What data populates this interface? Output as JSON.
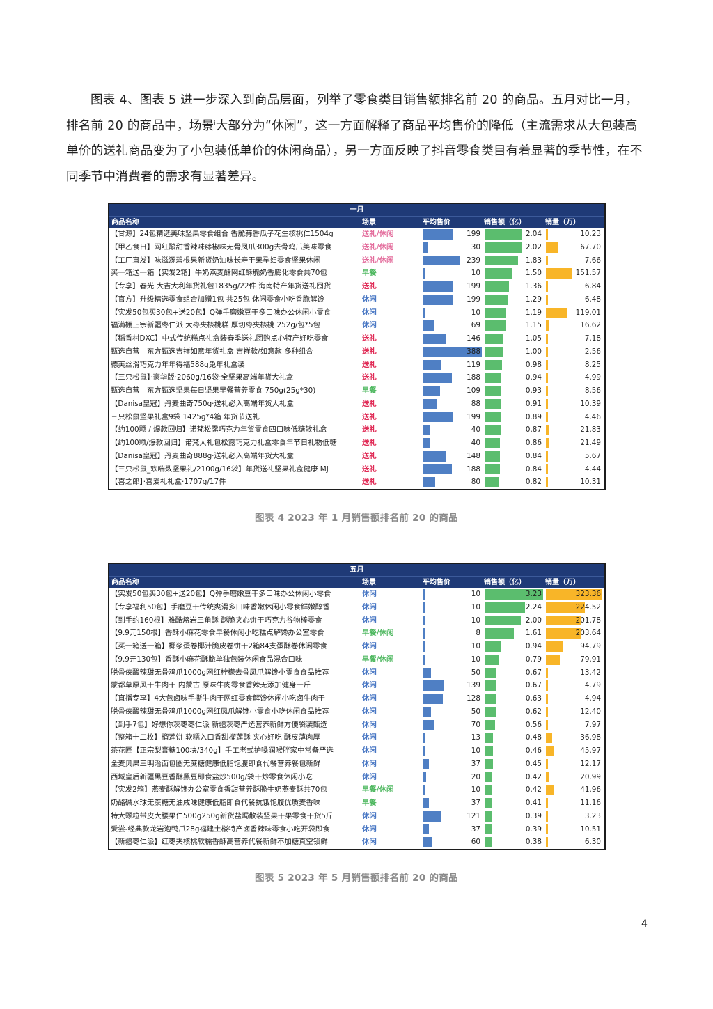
{
  "intro": {
    "text": "图表 4、图表 5 进一步深入到商品层面，列举了零食类目销售额排名前 20 的商品。五月对比一月，排名前 20 的商品中，场景",
    "footnote_mark": "i",
    "text2": "大部分为“休闲”，这一方面解释了商品平均售价的降低（主流需求从大包装高单价的送礼商品变为了小包装低单价的休闲商品），另一方面反映了抖音零食类目有着显著的季节性，在不同季节中消费者的需求有显著差异。"
  },
  "colors": {
    "header_bg": "#1f3a77",
    "price_bar": "#4f7fc4",
    "amount_bar": "#5bbd6e",
    "qty_bar": "#f8b528",
    "scene_gift": "#e02a55",
    "scene_gift_leisure": "#e36b9b",
    "scene_leisure": "#4a78c4",
    "scene_breakfast": "#4fb860"
  },
  "headers": {
    "name": "商品名称",
    "scene": "场景",
    "price": "平均售价",
    "amount": "销售额（亿）",
    "qty": "销量（万）"
  },
  "table1": {
    "title": "一月",
    "caption": "图表 4 2023 年 1 月销售额排名前 20 的商品",
    "rows": [
      {
        "name": "【甘源】24包精选美味坚果零食组合 香脆蒜香瓜子花生核桃仁1504g",
        "scene": "送礼/休闲",
        "price": "199",
        "amount": "2.04",
        "qty": "10.23",
        "price_v": 199,
        "amount_v": 2.04,
        "qty_v": 10.23
      },
      {
        "name": "【甲乙食日】网红酸甜香辣味藤椒味无骨凤爪300g去骨鸡爪美味零食",
        "scene": "送礼/休闲",
        "price": "30",
        "amount": "2.02",
        "qty": "67.70",
        "price_v": 30,
        "amount_v": 2.02,
        "qty_v": 67.7
      },
      {
        "name": "【工厂直发】味滋源碧根果新货奶油味长寿干果孕妇零食坚果休闲",
        "scene": "送礼/休闲",
        "price": "239",
        "amount": "1.83",
        "qty": "7.66",
        "price_v": 239,
        "amount_v": 1.83,
        "qty_v": 7.66
      },
      {
        "name": "买一箱送一箱【实发2箱】牛奶燕麦酥网红酥脆奶香膨化零食共70包",
        "scene": "早餐",
        "price": "10",
        "amount": "1.50",
        "qty": "151.57",
        "price_v": 10,
        "amount_v": 1.5,
        "qty_v": 151.57
      },
      {
        "name": "【专享】春光 大吉大利年货礼包1835g/22件 海南特产年货送礼囤货",
        "scene": "送礼",
        "price": "199",
        "amount": "1.36",
        "qty": "6.84",
        "price_v": 199,
        "amount_v": 1.36,
        "qty_v": 6.84
      },
      {
        "name": "【官方】升级精选零食组合加赠1包 共25包 休闲零食小吃香脆解馋",
        "scene": "休闲",
        "price": "199",
        "amount": "1.29",
        "qty": "6.48",
        "price_v": 199,
        "amount_v": 1.29,
        "qty_v": 6.48
      },
      {
        "name": "【实发50包买30包+送20包】Q弹手磨嫩豆干多口味办公休闲小零食",
        "scene": "休闲",
        "price": "10",
        "amount": "1.19",
        "qty": "119.01",
        "price_v": 10,
        "amount_v": 1.19,
        "qty_v": 119.01
      },
      {
        "name": "福满棚正宗新疆枣仁派 大枣夹核桃糕 厚切枣夹核桃 252g/包*5包",
        "scene": "休闲",
        "price": "69",
        "amount": "1.15",
        "qty": "16.62",
        "price_v": 69,
        "amount_v": 1.15,
        "qty_v": 16.62
      },
      {
        "name": "【稻香村DXC】中式传统糕点礼盒装春季送礼团购点心特产好吃零食",
        "scene": "送礼",
        "price": "146",
        "amount": "1.05",
        "qty": "7.18",
        "price_v": 146,
        "amount_v": 1.05,
        "qty_v": 7.18
      },
      {
        "name": "甄选自营｜东方甄选吉祥如意年货礼盒 吉祥款/如意款 多种组合",
        "scene": "送礼",
        "price": "388",
        "amount": "1.00",
        "qty": "2.56",
        "price_v": 388,
        "amount_v": 1.0,
        "qty_v": 2.56
      },
      {
        "name": "德芙丝滑巧克力年年得福588g兔年礼盒装",
        "scene": "送礼",
        "price": "119",
        "amount": "0.98",
        "qty": "8.25",
        "price_v": 119,
        "amount_v": 0.98,
        "qty_v": 8.25
      },
      {
        "name": "【三只松鼠】·豪华版·2060g/16袋·全坚果高端年货大礼盒",
        "scene": "送礼",
        "price": "188",
        "amount": "0.94",
        "qty": "4.99",
        "price_v": 188,
        "amount_v": 0.94,
        "qty_v": 4.99
      },
      {
        "name": "甄选自营｜东方甄选坚果每日坚果早餐营养零食 750g(25g*30)",
        "scene": "早餐",
        "price": "109",
        "amount": "0.93",
        "qty": "8.56",
        "price_v": 109,
        "amount_v": 0.93,
        "qty_v": 8.56
      },
      {
        "name": "【Danisa皇冠】丹麦曲奇750g·送礼必入高端年货大礼盒",
        "scene": "送礼",
        "price": "88",
        "amount": "0.91",
        "qty": "10.39",
        "price_v": 88,
        "amount_v": 0.91,
        "qty_v": 10.39
      },
      {
        "name": "三只松鼠坚果礼盒9袋 1425g*4箱 年货节送礼",
        "scene": "送礼",
        "price": "199",
        "amount": "0.89",
        "qty": "4.46",
        "price_v": 199,
        "amount_v": 0.89,
        "qty_v": 4.46
      },
      {
        "name": "【约100颗 / 爆款回归】诺梵松露巧克力年货零食四口味低糖散礼盒",
        "scene": "送礼",
        "price": "40",
        "amount": "0.87",
        "qty": "21.83",
        "price_v": 40,
        "amount_v": 0.87,
        "qty_v": 21.83
      },
      {
        "name": "【约100颗/爆款回归】诺梵大礼包松露巧克力礼盒零食年节日礼物低糖",
        "scene": "送礼",
        "price": "40",
        "amount": "0.86",
        "qty": "21.49",
        "price_v": 40,
        "amount_v": 0.86,
        "qty_v": 21.49
      },
      {
        "name": "【Danisa皇冠】丹麦曲奇888g·送礼必入高端年货大礼盒",
        "scene": "送礼",
        "price": "148",
        "amount": "0.84",
        "qty": "5.67",
        "price_v": 148,
        "amount_v": 0.84,
        "qty_v": 5.67
      },
      {
        "name": "【三只松鼠_欢喘数坚果礼/2100g/16袋】年货送礼坚果礼盒健康 MJ",
        "scene": "送礼",
        "price": "188",
        "amount": "0.84",
        "qty": "4.44",
        "price_v": 188,
        "amount_v": 0.84,
        "qty_v": 4.44
      },
      {
        "name": "【喜之郎】·喜爱礼礼盒·1707g/17件",
        "scene": "送礼",
        "price": "80",
        "amount": "0.82",
        "qty": "10.31",
        "price_v": 80,
        "amount_v": 0.82,
        "qty_v": 10.31
      }
    ]
  },
  "table2": {
    "title": "五月",
    "caption": "图表 5 2023 年 5 月销售额排名前 20 的商品",
    "rows": [
      {
        "name": "【实发50包买30包+送20包】Q弹手磨嫩豆干多口味办公休闲小零食",
        "scene": "休闲",
        "price": "10",
        "amount": "3.23",
        "qty": "323.36",
        "price_v": 10,
        "amount_v": 3.23,
        "qty_v": 323.36
      },
      {
        "name": "【专享福利50包】手磨豆干传统爽滑多口味香嫩休闲小零食鲜嫩醇香",
        "scene": "休闲",
        "price": "10",
        "amount": "2.24",
        "qty": "224.52",
        "price_v": 10,
        "amount_v": 2.24,
        "qty_v": 224.52
      },
      {
        "name": "【到手约160根】雅酷熔岩三角酥 酥脆夹心饼干巧克力谷物棒零食",
        "scene": "休闲",
        "price": "10",
        "amount": "2.00",
        "qty": "201.78",
        "price_v": 10,
        "amount_v": 2.0,
        "qty_v": 201.78
      },
      {
        "name": "【9.9元150根】香酥小麻花零食早餐休闲小吃糕点解馋办公室零食",
        "scene": "早餐/休闲",
        "price": "8",
        "amount": "1.61",
        "qty": "203.64",
        "price_v": 8,
        "amount_v": 1.61,
        "qty_v": 203.64
      },
      {
        "name": "【买一箱送一箱】椰浆蛋卷椰汁脆皮卷饼干2箱84支蛋酥卷休闲零食",
        "scene": "休闲",
        "price": "10",
        "amount": "0.94",
        "qty": "94.79",
        "price_v": 10,
        "amount_v": 0.94,
        "qty_v": 94.79
      },
      {
        "name": "【9.9元130包】香酥小麻花酥脆单独包装休闲食品混合口味",
        "scene": "早餐/休闲",
        "price": "10",
        "amount": "0.79",
        "qty": "79.91",
        "price_v": 10,
        "amount_v": 0.79,
        "qty_v": 79.91
      },
      {
        "name": "脱骨侠酸辣甜无骨鸡爪1000g网红柠檬去骨凤爪解馋小零食食品推荐",
        "scene": "休闲",
        "price": "50",
        "amount": "0.67",
        "qty": "13.42",
        "price_v": 50,
        "amount_v": 0.67,
        "qty_v": 13.42
      },
      {
        "name": "蒙都草原风干牛肉干 内蒙古 原味牛肉零食香辣无添加健身一斤",
        "scene": "休闲",
        "price": "139",
        "amount": "0.67",
        "qty": "4.79",
        "price_v": 139,
        "amount_v": 0.67,
        "qty_v": 4.79
      },
      {
        "name": "【直播专享】4大包卤味手撕牛肉干网红零食解馋休闲小吃卤牛肉干",
        "scene": "休闲",
        "price": "128",
        "amount": "0.63",
        "qty": "4.94",
        "price_v": 128,
        "amount_v": 0.63,
        "qty_v": 4.94
      },
      {
        "name": "脱骨侠酸辣甜无骨鸡爪1000g网红凤爪解馋小零食小吃休闲食品推荐",
        "scene": "休闲",
        "price": "50",
        "amount": "0.62",
        "qty": "12.40",
        "price_v": 50,
        "amount_v": 0.62,
        "qty_v": 12.4
      },
      {
        "name": "【到手7包】好想你灰枣枣仁派 新疆灰枣严选营养新鲜方便袋装甄选",
        "scene": "休闲",
        "price": "70",
        "amount": "0.56",
        "qty": "7.97",
        "price_v": 70,
        "amount_v": 0.56,
        "qty_v": 7.97
      },
      {
        "name": "【整箱十二枚】榴莲饼 软糯入口香甜榴莲酥 夹心好吃 酥皮薄肉厚",
        "scene": "休闲",
        "price": "13",
        "amount": "0.48",
        "qty": "36.98",
        "price_v": 13,
        "amount_v": 0.48,
        "qty_v": 36.98
      },
      {
        "name": "茶花匠【正宗梨膏糖100块/340g】手工老式护嗓润喉胖家中常备严选",
        "scene": "休闲",
        "price": "10",
        "amount": "0.46",
        "qty": "45.97",
        "price_v": 10,
        "amount_v": 0.46,
        "qty_v": 45.97
      },
      {
        "name": "全麦贝果三明治面包圈无蔗糖健康低脂饱腹即食代餐营养餐包新鲜",
        "scene": "休闲",
        "price": "37",
        "amount": "0.45",
        "qty": "12.17",
        "price_v": 37,
        "amount_v": 0.45,
        "qty_v": 12.17
      },
      {
        "name": "西域皇后新疆黑豆香酥黑豆即食盐炒500g/袋干炒零食休闲小吃",
        "scene": "休闲",
        "price": "20",
        "amount": "0.42",
        "qty": "20.99",
        "price_v": 20,
        "amount_v": 0.42,
        "qty_v": 20.99
      },
      {
        "name": "【实发2箱】燕麦酥解馋办公室零食香甜营养酥脆牛奶燕麦酥共70包",
        "scene": "早餐/休闲",
        "price": "10",
        "amount": "0.42",
        "qty": "41.96",
        "price_v": 10,
        "amount_v": 0.42,
        "qty_v": 41.96
      },
      {
        "name": "奶酪碱水球无蔗糖无油咸味健康低脂即食代餐抗饿饱腹优质麦香味",
        "scene": "早餐",
        "price": "37",
        "amount": "0.41",
        "qty": "11.16",
        "price_v": 37,
        "amount_v": 0.41,
        "qty_v": 11.16
      },
      {
        "name": "特大颗粒带皮大腰果仁500g250g新货盐焗散装坚果干果零食干货5斤",
        "scene": "休闲",
        "price": "121",
        "amount": "0.39",
        "qty": "3.23",
        "price_v": 121,
        "amount_v": 0.39,
        "qty_v": 3.23
      },
      {
        "name": "爱尝-经典款龙岩泡鸭爪28g福建土楼特产卤香辣味零食小吃开袋即食",
        "scene": "休闲",
        "price": "37",
        "amount": "0.39",
        "qty": "10.51",
        "price_v": 37,
        "amount_v": 0.39,
        "qty_v": 10.51
      },
      {
        "name": "【新疆枣仁派】红枣夹核桃软糯香酥高营养代餐新鲜不加糖真空锁鲜",
        "scene": "休闲",
        "price": "60",
        "amount": "0.38",
        "qty": "6.30",
        "price_v": 60,
        "amount_v": 0.38,
        "qty_v": 6.3
      }
    ]
  },
  "page_number": "4"
}
